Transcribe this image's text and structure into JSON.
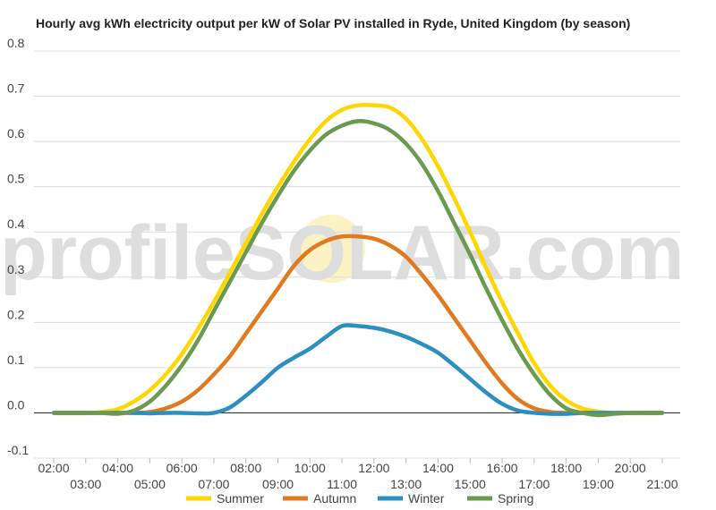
{
  "chart_data": {
    "type": "line",
    "title": "Hourly avg kWh electricity output per kW of Solar PV installed in Ryde, United Kingdom (by season)",
    "xlabel": "",
    "ylabel": "",
    "watermark": "profileSOLAR.com",
    "x_ticks": [
      "02:00",
      "03:00",
      "04:00",
      "05:00",
      "06:00",
      "07:00",
      "08:00",
      "09:00",
      "10:00",
      "11:00",
      "12:00",
      "13:00",
      "14:00",
      "15:00",
      "16:00",
      "17:00",
      "18:00",
      "19:00",
      "20:00",
      "21:00"
    ],
    "y_ticks": [
      "-0.1",
      "0.0",
      "0.1",
      "0.2",
      "0.3",
      "0.4",
      "0.5",
      "0.6",
      "0.7",
      "0.8"
    ],
    "ylim": [
      -0.1,
      0.8
    ],
    "grid": true,
    "legend_position": "bottom",
    "series": [
      {
        "name": "Summer",
        "color": "#FFD700",
        "x": [
          2,
          2.5,
          3,
          3.5,
          4,
          4.5,
          5,
          5.5,
          6,
          6.5,
          7,
          7.5,
          8,
          8.5,
          9,
          9.5,
          10,
          10.5,
          11,
          11.5,
          12,
          12.5,
          13,
          13.5,
          14,
          14.5,
          15,
          15.5,
          16,
          16.5,
          17,
          17.5,
          18,
          18.5,
          19,
          19.5,
          20,
          20.5,
          21
        ],
        "y": [
          0,
          0,
          0,
          0.002,
          0.008,
          0.025,
          0.05,
          0.085,
          0.13,
          0.185,
          0.245,
          0.31,
          0.375,
          0.44,
          0.5,
          0.555,
          0.605,
          0.645,
          0.67,
          0.68,
          0.68,
          0.675,
          0.65,
          0.605,
          0.545,
          0.475,
          0.4,
          0.32,
          0.245,
          0.175,
          0.11,
          0.06,
          0.028,
          0.01,
          0.003,
          0,
          0,
          0,
          0
        ]
      },
      {
        "name": "Autumn",
        "color": "#E07A1F",
        "x": [
          2,
          2.5,
          3,
          3.5,
          4,
          4.5,
          5,
          5.5,
          6,
          6.5,
          7,
          7.5,
          8,
          8.5,
          9,
          9.5,
          10,
          10.5,
          11,
          11.5,
          12,
          12.5,
          13,
          13.5,
          14,
          14.5,
          15,
          15.5,
          16,
          16.5,
          17,
          17.5,
          18,
          18.5,
          19,
          19.5,
          20,
          20.5,
          21
        ],
        "y": [
          0,
          0,
          0,
          0,
          0,
          0,
          0.002,
          0.01,
          0.025,
          0.05,
          0.085,
          0.125,
          0.175,
          0.225,
          0.275,
          0.325,
          0.36,
          0.38,
          0.39,
          0.39,
          0.385,
          0.37,
          0.345,
          0.305,
          0.26,
          0.21,
          0.16,
          0.11,
          0.065,
          0.03,
          0.01,
          0.002,
          0,
          0,
          0,
          0,
          0,
          0,
          0
        ]
      },
      {
        "name": "Winter",
        "color": "#2B8FBF",
        "x": [
          2,
          2.5,
          3,
          3.5,
          4,
          4.5,
          5,
          5.5,
          6,
          6.5,
          7,
          7.5,
          8,
          8.5,
          9,
          9.5,
          10,
          10.5,
          11,
          11.5,
          12,
          12.5,
          13,
          13.5,
          14,
          14.5,
          15,
          15.5,
          16,
          16.5,
          17,
          17.5,
          18,
          18.5,
          19,
          19.5,
          20,
          20.5,
          21
        ],
        "y": [
          0,
          0,
          0,
          0,
          0,
          0,
          -0.001,
          0,
          0,
          -0.001,
          0,
          0.012,
          0.038,
          0.068,
          0.1,
          0.122,
          0.142,
          0.168,
          0.192,
          0.192,
          0.188,
          0.18,
          0.168,
          0.152,
          0.133,
          0.105,
          0.075,
          0.045,
          0.02,
          0.005,
          0,
          -0.002,
          -0.002,
          0,
          0,
          0,
          0,
          0,
          0
        ]
      },
      {
        "name": "Spring",
        "color": "#6A9A4F",
        "x": [
          2,
          2.5,
          3,
          3.5,
          4,
          4.5,
          5,
          5.5,
          6,
          6.5,
          7,
          7.5,
          8,
          8.5,
          9,
          9.5,
          10,
          10.5,
          11,
          11.5,
          12,
          12.5,
          13,
          13.5,
          14,
          14.5,
          15,
          15.5,
          16,
          16.5,
          17,
          17.5,
          18,
          18.5,
          19,
          19.5,
          20,
          20.5,
          21
        ],
        "y": [
          0,
          0,
          0,
          0,
          -0.002,
          0.005,
          0.025,
          0.06,
          0.105,
          0.16,
          0.225,
          0.29,
          0.355,
          0.42,
          0.48,
          0.535,
          0.58,
          0.615,
          0.635,
          0.645,
          0.64,
          0.625,
          0.595,
          0.55,
          0.49,
          0.42,
          0.35,
          0.275,
          0.205,
          0.14,
          0.085,
          0.04,
          0.01,
          0,
          -0.005,
          -0.002,
          0,
          0,
          0
        ]
      }
    ]
  }
}
